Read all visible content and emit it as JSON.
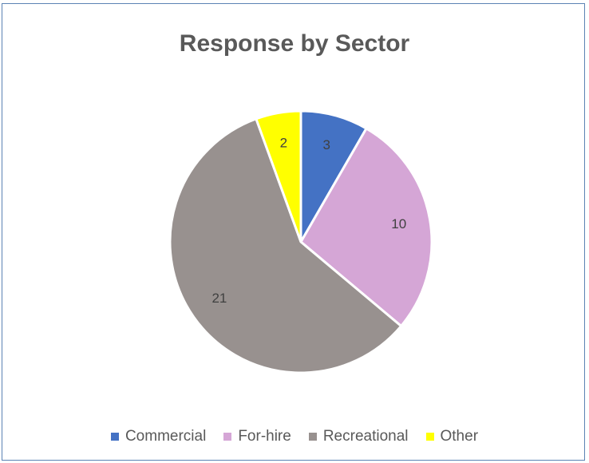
{
  "chart_data": {
    "type": "pie",
    "title": "Response by Sector",
    "categories": [
      "Commercial",
      "For-hire",
      "Recreational",
      "Other"
    ],
    "values": [
      3,
      10,
      21,
      2
    ],
    "colors": [
      "#4472c4",
      "#d5a6d6",
      "#98918f",
      "#ffff00"
    ],
    "legend_position": "bottom",
    "data_labels": [
      "3",
      "10",
      "21",
      "2"
    ]
  }
}
